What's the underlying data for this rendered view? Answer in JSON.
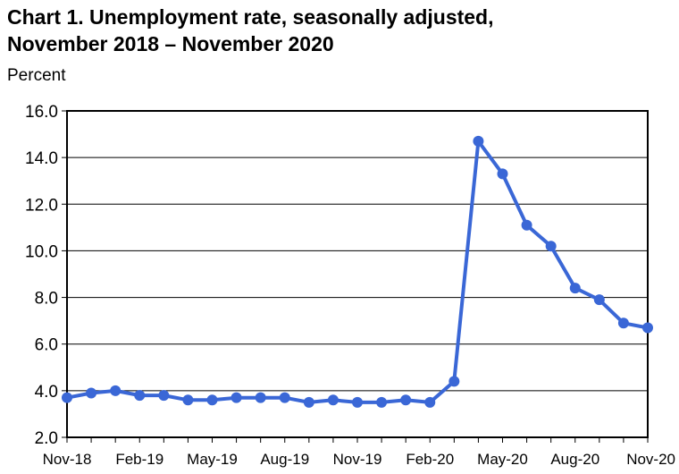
{
  "chart_data": {
    "type": "line",
    "title_line1": "Chart 1. Unemployment rate, seasonally adjusted,",
    "title_line2": "November 2018 – November 2020",
    "ylabel": "Percent",
    "xlabel": "",
    "ylim": [
      2.0,
      16.0
    ],
    "y_ticks": [
      "2.0",
      "4.0",
      "6.0",
      "8.0",
      "10.0",
      "12.0",
      "14.0",
      "16.0"
    ],
    "x_tick_labels": [
      "Nov-18",
      "Feb-19",
      "May-19",
      "Aug-19",
      "Nov-19",
      "Feb-20",
      "May-20",
      "Aug-20",
      "Nov-20"
    ],
    "x": [
      "Nov-18",
      "Dec-18",
      "Jan-19",
      "Feb-19",
      "Mar-19",
      "Apr-19",
      "May-19",
      "Jun-19",
      "Jul-19",
      "Aug-19",
      "Sep-19",
      "Oct-19",
      "Nov-19",
      "Dec-19",
      "Jan-20",
      "Feb-20",
      "Mar-20",
      "Apr-20",
      "May-20",
      "Jun-20",
      "Jul-20",
      "Aug-20",
      "Sep-20",
      "Oct-20",
      "Nov-20"
    ],
    "values": [
      3.7,
      3.9,
      4.0,
      3.8,
      3.8,
      3.6,
      3.6,
      3.7,
      3.7,
      3.7,
      3.5,
      3.6,
      3.5,
      3.5,
      3.6,
      3.5,
      4.4,
      14.7,
      13.3,
      11.1,
      10.2,
      8.4,
      7.9,
      6.9,
      6.7
    ],
    "grid": true,
    "line_color": "#3a67d6"
  }
}
